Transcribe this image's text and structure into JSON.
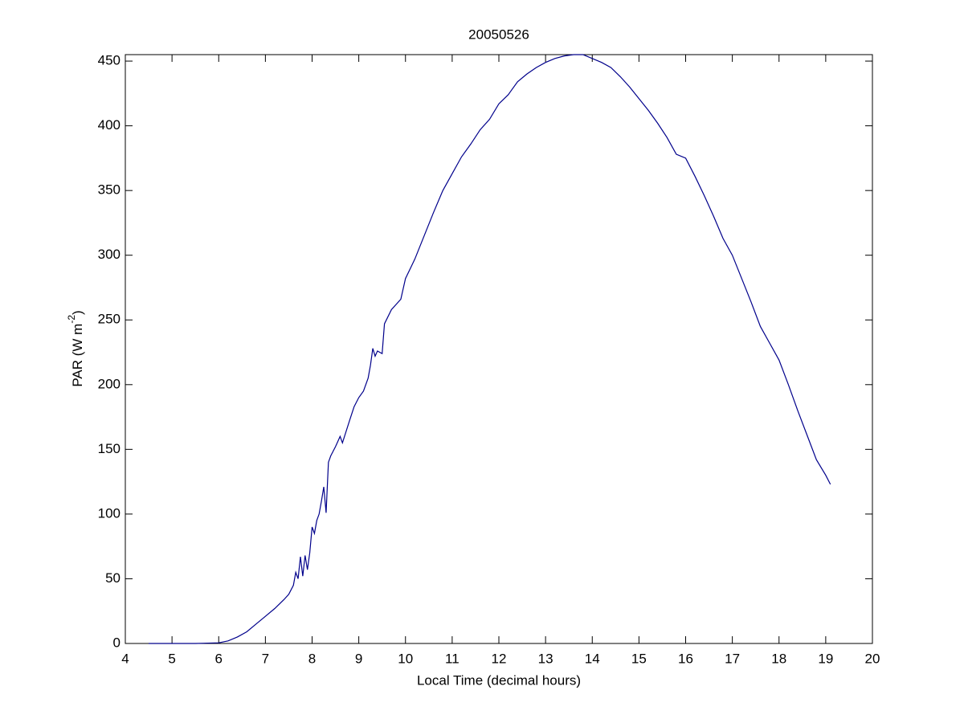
{
  "chart_data": {
    "type": "line",
    "title": "20050526",
    "xlabel": "Local Time (decimal hours)",
    "ylabel": [
      "PAR (W m",
      "-2",
      ")"
    ],
    "xlim": [
      4,
      20
    ],
    "ylim": [
      0,
      455
    ],
    "xticks": [
      4,
      5,
      6,
      7,
      8,
      9,
      10,
      11,
      12,
      13,
      14,
      15,
      16,
      17,
      18,
      19,
      20
    ],
    "yticks": [
      0,
      50,
      100,
      150,
      200,
      250,
      300,
      350,
      400,
      450
    ],
    "grid": false,
    "series": [
      {
        "color": "#00008b",
        "x": [
          4.5,
          5,
          5.5,
          6.0,
          6.2,
          6.4,
          6.6,
          6.8,
          7.0,
          7.2,
          7.4,
          7.5,
          7.6,
          7.65,
          7.7,
          7.75,
          7.8,
          7.85,
          7.9,
          7.95,
          8.0,
          8.05,
          8.1,
          8.15,
          8.2,
          8.25,
          8.3,
          8.35,
          8.4,
          8.5,
          8.6,
          8.65,
          8.8,
          8.9,
          9.0,
          9.1,
          9.2,
          9.25,
          9.3,
          9.35,
          9.4,
          9.5,
          9.55,
          9.7,
          9.9,
          10.0,
          10.2,
          10.4,
          10.6,
          10.8,
          11.0,
          11.2,
          11.4,
          11.6,
          11.8,
          12.0,
          12.2,
          12.4,
          12.6,
          12.8,
          13.0,
          13.2,
          13.4,
          13.6,
          13.8,
          14.0,
          14.2,
          14.4,
          14.6,
          14.8,
          15.0,
          15.2,
          15.4,
          15.6,
          15.8,
          16.0,
          16.2,
          16.4,
          16.6,
          16.8,
          17.0,
          17.2,
          17.4,
          17.6,
          17.8,
          18.0,
          18.2,
          18.4,
          18.6,
          18.8,
          19.0,
          19.1
        ],
        "values": [
          0,
          0,
          0,
          0.5,
          2,
          5,
          9,
          15,
          21,
          27,
          34,
          38,
          45,
          55,
          50,
          67,
          52,
          68,
          57,
          70,
          90,
          85,
          95,
          100,
          110,
          121,
          101,
          140,
          145,
          152,
          160,
          155,
          172,
          183,
          190,
          195,
          205,
          215,
          228,
          222,
          226,
          224,
          247,
          258,
          266,
          282,
          297,
          315,
          333,
          350,
          363,
          376,
          386,
          397,
          405,
          417,
          424,
          434,
          440,
          445,
          449,
          452,
          454,
          455,
          455,
          452,
          449,
          445,
          438,
          430,
          421,
          412,
          402,
          391,
          378,
          375,
          361,
          346,
          330,
          313,
          300,
          282,
          264,
          245,
          232,
          219,
          200,
          180,
          161,
          142,
          130,
          123
        ]
      }
    ]
  }
}
